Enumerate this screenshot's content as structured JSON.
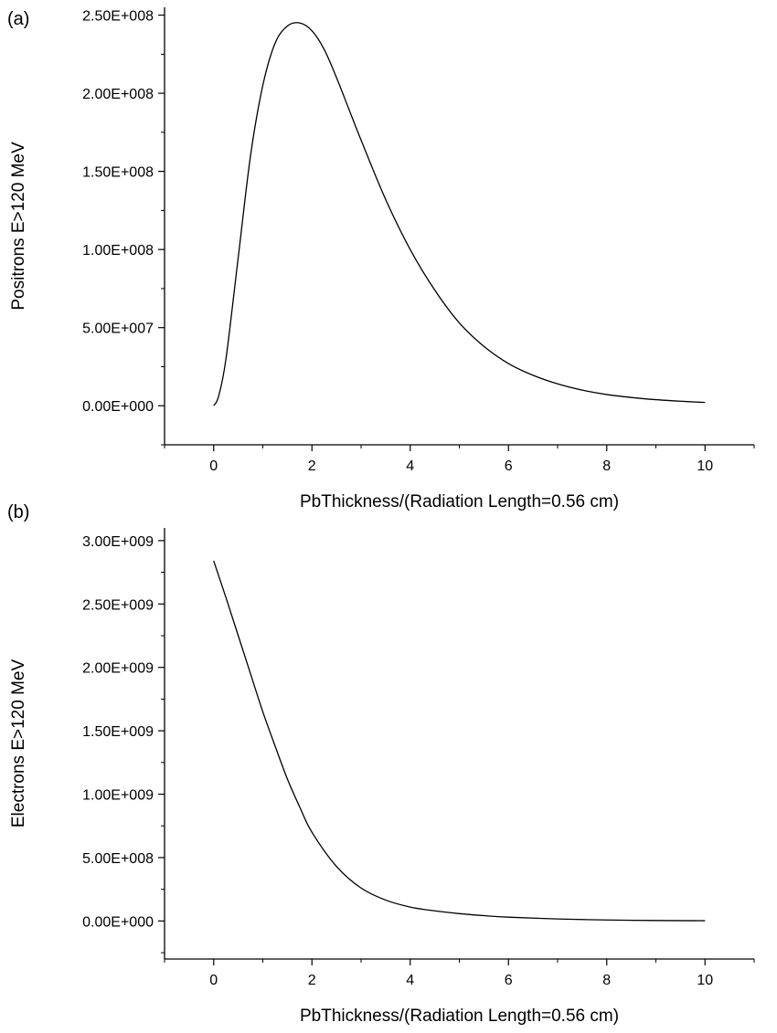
{
  "chart_data": [
    {
      "type": "line",
      "panel_label": "(a)",
      "xlabel": "PbThickness/(Radiation Length=0.56 cm)",
      "ylabel": "Positrons E>120 MeV",
      "xlim": [
        -1,
        11
      ],
      "ylim": [
        -25000000,
        255000000
      ],
      "x_ticks": [
        0,
        2,
        4,
        6,
        8,
        10
      ],
      "x_tick_labels": [
        "0",
        "2",
        "4",
        "6",
        "8",
        "10"
      ],
      "y_ticks": [
        0,
        50000000,
        100000000,
        150000000,
        200000000,
        250000000
      ],
      "y_tick_labels": [
        "0.00E+000",
        "5.00E+007",
        "1.00E+008",
        "1.50E+008",
        "2.00E+008",
        "2.50E+008"
      ],
      "grid": false,
      "series": [
        {
          "color": "#000000",
          "x": [
            0,
            0.1,
            0.25,
            0.5,
            0.75,
            1.0,
            1.25,
            1.5,
            1.75,
            2.0,
            2.25,
            2.5,
            2.75,
            3.0,
            3.5,
            4.0,
            4.5,
            5.0,
            5.5,
            6.0,
            6.5,
            7.0,
            7.5,
            8.0,
            8.5,
            9.0,
            9.5,
            10.0
          ],
          "y": [
            0,
            6000000,
            30000000,
            95000000,
            160000000,
            205000000,
            232000000,
            243000000,
            245000000,
            240000000,
            228000000,
            210000000,
            190000000,
            170000000,
            132000000,
            100000000,
            74000000,
            53000000,
            38000000,
            27000000,
            19500000,
            14000000,
            10000000,
            7200000,
            5300000,
            3900000,
            2900000,
            2100000
          ]
        }
      ]
    },
    {
      "type": "line",
      "panel_label": "(b)",
      "xlabel": "PbThickness/(Radiation Length=0.56 cm)",
      "ylabel": "Electrons E>120 MeV",
      "xlim": [
        -1,
        11
      ],
      "ylim": [
        -300000000,
        3100000000
      ],
      "x_ticks": [
        0,
        2,
        4,
        6,
        8,
        10
      ],
      "x_tick_labels": [
        "0",
        "2",
        "4",
        "6",
        "8",
        "10"
      ],
      "y_ticks": [
        0,
        500000000,
        1000000000,
        1500000000,
        2000000000,
        2500000000,
        3000000000
      ],
      "y_tick_labels": [
        "0.00E+000",
        "5.00E+008",
        "1.00E+009",
        "1.50E+009",
        "2.00E+009",
        "2.50E+009",
        "3.00E+009"
      ],
      "grid": false,
      "series": [
        {
          "color": "#000000",
          "x": [
            0,
            0.25,
            0.5,
            0.75,
            1.0,
            1.25,
            1.5,
            1.75,
            2.0,
            2.5,
            3.0,
            3.5,
            4.0,
            4.5,
            5.0,
            5.5,
            6.0,
            7.0,
            8.0,
            9.0,
            10.0
          ],
          "y": [
            2840000000,
            2550000000,
            2250000000,
            1950000000,
            1650000000,
            1380000000,
            1120000000,
            900000000,
            700000000,
            430000000,
            260000000,
            165000000,
            110000000,
            80000000,
            58000000,
            42000000,
            30000000,
            16000000,
            8000000,
            4000000,
            2000000
          ]
        }
      ]
    }
  ]
}
